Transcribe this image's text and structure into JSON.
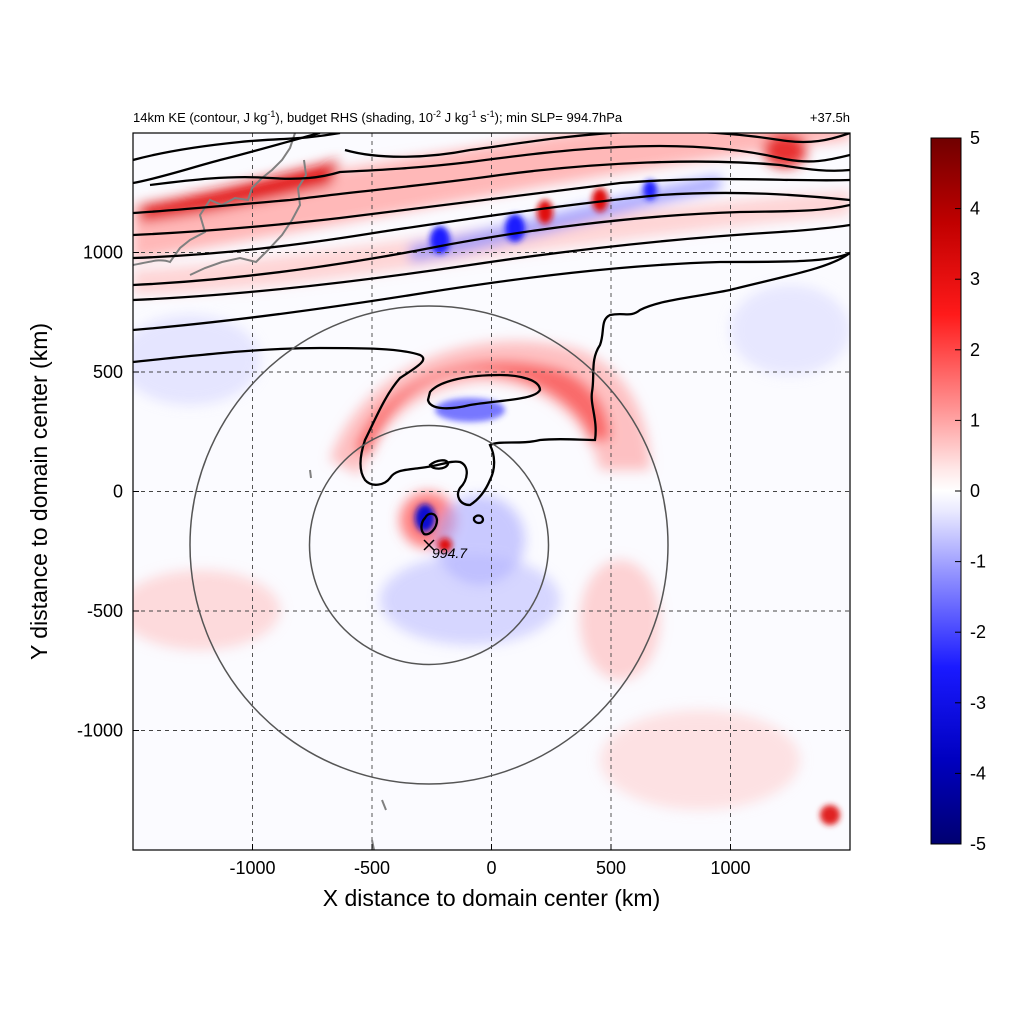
{
  "title": {
    "main": "14km KE (contour, J kg",
    "sup1": "-1",
    "mid1": "), budget RHS (shading, 10",
    "sup2": "-2",
    "mid2": " J kg",
    "sup3": "-1",
    "mid3": " s",
    "sup4": "-1",
    "end": "); min SLP= 994.7hPa",
    "time": "+37.5h"
  },
  "chart_data": {
    "type": "heatmap",
    "xlabel": "X distance to domain center (km)",
    "ylabel": "Y distance to domain center (km)",
    "xlim": [
      -1500,
      1500
    ],
    "ylim": [
      -1500,
      1500
    ],
    "xticks": [
      -1000,
      -500,
      0,
      500,
      1000
    ],
    "yticks": [
      -1000,
      -500,
      0,
      500,
      1000
    ],
    "x_tick_labels": [
      "-1000",
      "-500",
      "0",
      "500",
      "1000"
    ],
    "y_tick_labels": [
      "-1000",
      "-500",
      "0",
      "500",
      "1000"
    ],
    "grid": true,
    "grid_style": "dashed",
    "colorbar": {
      "min": -5,
      "max": 5,
      "ticks": [
        5,
        4,
        3,
        2,
        1,
        0,
        -1,
        -2,
        -3,
        -4,
        -5
      ],
      "tick_labels": [
        "5",
        "4",
        "3",
        "2",
        "1",
        "0",
        "-1",
        "-2",
        "-3",
        "-4",
        "-5"
      ],
      "colors": {
        "high": "#7a0000",
        "mid_high": "#ff0000",
        "zero": "#ffffff",
        "mid_low": "#0000ff",
        "low": "#00007a"
      }
    },
    "storm_center": {
      "x": -260,
      "y": -220,
      "label": "994.7",
      "marker": "x"
    },
    "range_rings_km": [
      500,
      1000
    ],
    "colors": {
      "contour": "#000000",
      "coastline": "#808080",
      "ring": "#555555",
      "grid": "#444444"
    }
  }
}
